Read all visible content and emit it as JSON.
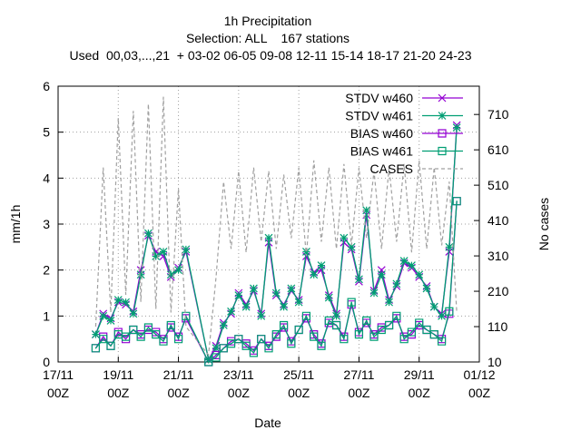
{
  "chart_data": {
    "type": "line",
    "title": "1h Precipitation",
    "subtitle": "Selection: ALL    167 stations",
    "subtitle2": "Used  00,03,...,21  + 03-02 06-05 09-08 12-11 15-14 18-17 21-20 24-23",
    "x_label": "Date",
    "y_label": "mm/1h",
    "y2_label": "No cases",
    "grid": true,
    "legend": "top-right",
    "xlim": [
      0,
      14
    ],
    "xticks": [
      {
        "value": 0,
        "label": "17/11\n00Z"
      },
      {
        "value": 2,
        "label": "19/11\n00Z"
      },
      {
        "value": 4,
        "label": "21/11\n00Z"
      },
      {
        "value": 6,
        "label": "23/11\n00Z"
      },
      {
        "value": 8,
        "label": "25/11\n00Z"
      },
      {
        "value": 10,
        "label": "27/11\n00Z"
      },
      {
        "value": 12,
        "label": "29/11\n00Z"
      },
      {
        "value": 14,
        "label": "01/12\n00Z"
      }
    ],
    "ylim": [
      0,
      6
    ],
    "yticks": [
      0,
      1,
      2,
      3,
      4,
      5,
      6
    ],
    "y2lim": [
      10,
      790
    ],
    "y2ticks": [
      10,
      110,
      210,
      310,
      410,
      510,
      610,
      710
    ],
    "x": [
      1.25,
      1.5,
      1.75,
      2,
      2.25,
      2.5,
      2.75,
      3,
      3.25,
      3.5,
      3.75,
      4,
      4.25,
      5,
      5.25,
      5.5,
      5.75,
      6,
      6.25,
      6.5,
      6.75,
      7,
      7.25,
      7.5,
      7.75,
      8,
      8.25,
      8.5,
      8.75,
      9,
      9.25,
      9.5,
      9.75,
      10,
      10.25,
      10.5,
      10.75,
      11,
      11.25,
      11.5,
      11.75,
      12,
      12.25,
      12.5,
      12.75,
      13,
      13.25
    ],
    "series": [
      {
        "name": "STDV w460",
        "color": "#9400d3",
        "marker": "cross",
        "values": [
          0.6,
          1.05,
          0.95,
          1.3,
          1.25,
          1.1,
          2.0,
          2.75,
          2.4,
          2.3,
          1.85,
          2.05,
          2.4,
          0.05,
          0.35,
          0.85,
          1.05,
          1.5,
          1.25,
          1.55,
          1.05,
          2.6,
          1.45,
          1.25,
          1.55,
          1.35,
          2.3,
          1.95,
          2.0,
          1.45,
          1.05,
          2.6,
          2.45,
          1.75,
          3.2,
          1.55,
          2.0,
          1.35,
          1.65,
          2.15,
          2.05,
          1.85,
          1.65,
          1.2,
          1.05,
          2.4,
          5.15
        ]
      },
      {
        "name": "STDV w461",
        "color": "#009e73",
        "marker": "star",
        "values": [
          0.6,
          1.0,
          0.9,
          1.35,
          1.3,
          1.05,
          1.9,
          2.8,
          2.3,
          2.4,
          1.9,
          2.0,
          2.45,
          0.05,
          0.3,
          0.8,
          1.1,
          1.45,
          1.2,
          1.6,
          1.0,
          2.7,
          1.5,
          1.2,
          1.6,
          1.3,
          2.4,
          1.9,
          2.1,
          1.4,
          1.0,
          2.7,
          2.5,
          1.8,
          3.3,
          1.5,
          1.9,
          1.3,
          1.7,
          2.2,
          2.1,
          1.9,
          1.6,
          1.2,
          1.0,
          2.5,
          5.1
        ]
      },
      {
        "name": "BIAS w460",
        "color": "#9400d3",
        "marker": "square",
        "values": [
          0.3,
          0.55,
          0.35,
          0.65,
          0.5,
          0.7,
          0.6,
          0.7,
          0.65,
          0.5,
          0.75,
          0.55,
          0.95,
          0.0,
          0.15,
          0.3,
          0.45,
          0.5,
          0.4,
          0.25,
          0.5,
          0.35,
          0.55,
          0.75,
          0.45,
          0.7,
          0.95,
          0.6,
          0.4,
          0.85,
          0.8,
          0.55,
          1.25,
          0.65,
          0.85,
          0.6,
          0.75,
          0.8,
          0.95,
          0.55,
          0.6,
          0.8,
          0.7,
          0.6,
          0.5,
          1.05,
          3.5
        ]
      },
      {
        "name": "BIAS w461",
        "color": "#009e73",
        "marker": "dotsquare",
        "values": [
          0.3,
          0.5,
          0.35,
          0.6,
          0.55,
          0.7,
          0.55,
          0.75,
          0.6,
          0.45,
          0.8,
          0.5,
          1.0,
          0.0,
          0.1,
          0.3,
          0.4,
          0.5,
          0.35,
          0.2,
          0.5,
          0.3,
          0.6,
          0.8,
          0.4,
          0.7,
          1.0,
          0.55,
          0.35,
          0.9,
          0.8,
          0.5,
          1.3,
          0.6,
          0.9,
          0.55,
          0.7,
          0.8,
          1.0,
          0.5,
          0.65,
          0.85,
          0.7,
          0.6,
          0.45,
          1.1,
          3.5
        ]
      },
      {
        "name": "CASES",
        "color": "#a0a0a0",
        "dash": true,
        "axis": "y2",
        "values": [
          110,
          560,
          150,
          700,
          200,
          720,
          180,
          740,
          160,
          760,
          150,
          500,
          110,
          30,
          250,
          520,
          330,
          550,
          320,
          560,
          350,
          550,
          330,
          540,
          360,
          560,
          310,
          580,
          350,
          560,
          330,
          570,
          340,
          560,
          360,
          550,
          330,
          560,
          350,
          570,
          320,
          580,
          330,
          560,
          340,
          520,
          150
        ]
      }
    ]
  }
}
